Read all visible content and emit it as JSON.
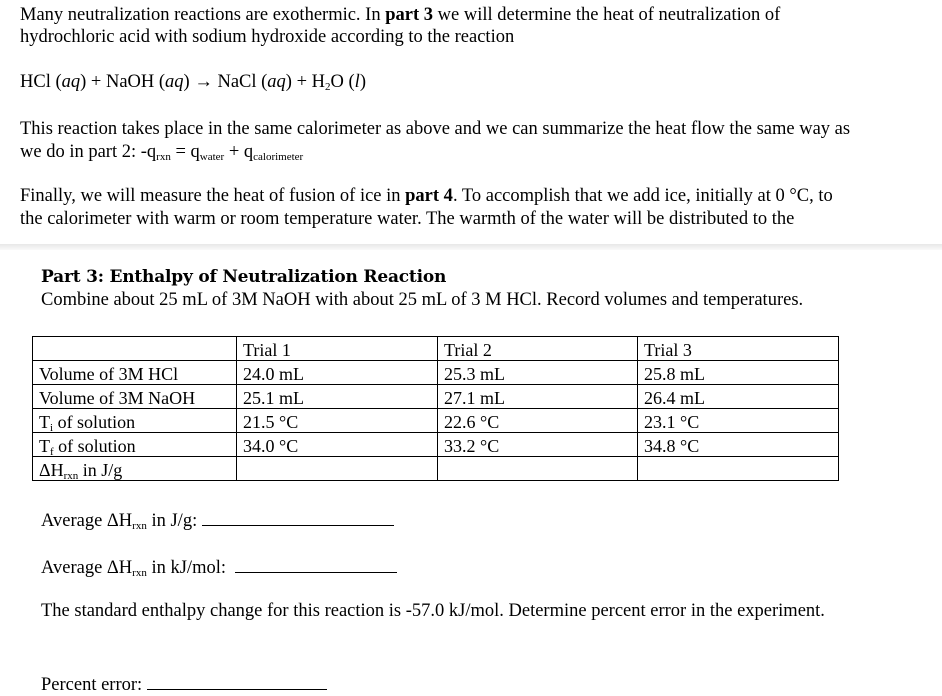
{
  "intro": {
    "line1_pre": "Many neutralization reactions are exothermic. In ",
    "line1_bold": "part 3",
    "line1_post": " we will determine the heat of neutralization of",
    "line2": "hydrochloric acid with sodium hydroxide according to the reaction",
    "eq": {
      "hcl": "HCl (",
      "aq": "aq",
      "p1": ") + NaOH (",
      "aq2": "aq",
      "p2": ") → NaCl (",
      "aq3": "aq",
      "p3": ") + H",
      "sub2": "2",
      "p4": "O (",
      "l": "l",
      "p5": ")"
    },
    "para2_line1": "This reaction takes place in the same calorimeter as above and we can summarize the heat flow the same way as",
    "para2_line2_pre": "we do in part 2: -q",
    "sub_rxn": "rxn",
    "eq_mid": " = q",
    "sub_water": "water",
    "plus": " + q",
    "sub_cal": "calorimeter",
    "para3_line1_pre": "Finally, we will measure the heat of fusion of ice in ",
    "para3_bold": "part 4",
    "para3_line1_post": ". To accomplish that we add ice, initially at 0 °C, to",
    "para3_line2": "the calorimeter with warm or room temperature water. The warmth of the water will be distributed to the"
  },
  "part3": {
    "heading": "Part 3: Enthalpy of Neutralization Reaction",
    "instructions": "Combine about 25 mL of 3M NaOH with about 25 mL of 3 M HCl. Record volumes and temperatures.",
    "table": {
      "headers": [
        "",
        "Trial 1",
        "Trial 2",
        "Trial 3"
      ],
      "rows": [
        {
          "label": "Volume of 3M HCl",
          "values": [
            "24.0 mL",
            "25.3 mL",
            "25.8 mL"
          ]
        },
        {
          "label": "Volume of 3M NaOH",
          "values": [
            "25.1 mL",
            "27.1 mL",
            "26.4 mL"
          ]
        },
        {
          "label_main": "T",
          "label_sub": "i",
          "label_rest": " of solution",
          "values": [
            "21.5 °C",
            "22.6 °C",
            "23.1 °C"
          ]
        },
        {
          "label_main": "T",
          "label_sub": "f",
          "label_rest": " of solution",
          "values": [
            "34.0 °C",
            "33.2 °C",
            "34.8 °C"
          ]
        },
        {
          "label_main": "ΔH",
          "label_sub": "rxn",
          "label_rest": " in J/g",
          "values": [
            "",
            "",
            ""
          ]
        }
      ]
    },
    "avg_jg_pre": "Average ΔH",
    "avg_jg_sub": "rxn",
    "avg_jg_post": " in J/g:",
    "avg_kj_pre": "Average ΔH",
    "avg_kj_sub": "rxn",
    "avg_kj_post": " in kJ/mol:",
    "standard": "The standard enthalpy change for this reaction is -57.0 kJ/mol. Determine percent error in the experiment.",
    "percent_error_label": "Percent error:"
  }
}
